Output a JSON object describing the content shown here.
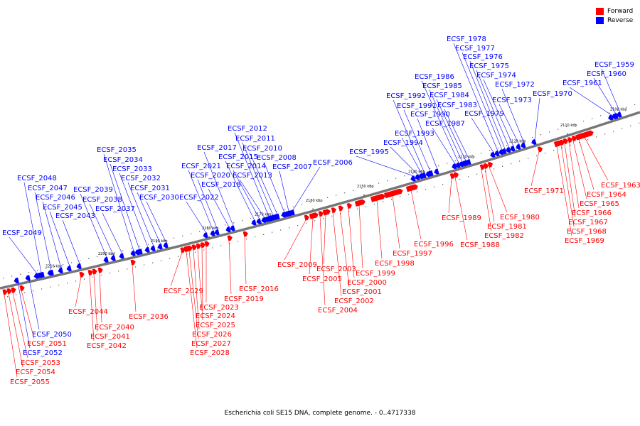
{
  "legend": {
    "forward": {
      "label": "Forward",
      "color": "#ff0000"
    },
    "reverse": {
      "label": "Reverse",
      "color": "#0000ff"
    }
  },
  "caption": "Escherichia coli SE15 DNA, complete genome. - 0..4717338",
  "ticks": [
    "2100 kbp",
    "2110 kbp",
    "2120 kbp",
    "2130 kbp",
    "2140 kbp",
    "2150 kbp",
    "2160 kbp",
    "2170 kbp",
    "2180 kbp",
    "2190 kbp",
    "2200 kbp",
    "2210 kbp"
  ],
  "genes": [
    {
      "id": "ECSF_1959",
      "strand": "reverse"
    },
    {
      "id": "ECSF_1960",
      "strand": "reverse"
    },
    {
      "id": "ECSF_1961",
      "strand": "reverse"
    },
    {
      "id": "ECSF_1963",
      "strand": "forward"
    },
    {
      "id": "ECSF_1964",
      "strand": "forward"
    },
    {
      "id": "ECSF_1965",
      "strand": "forward"
    },
    {
      "id": "ECSF_1966",
      "strand": "forward"
    },
    {
      "id": "ECSF_1967",
      "strand": "forward"
    },
    {
      "id": "ECSF_1968",
      "strand": "forward"
    },
    {
      "id": "ECSF_1969",
      "strand": "forward"
    },
    {
      "id": "ECSF_1970",
      "strand": "reverse"
    },
    {
      "id": "ECSF_1971",
      "strand": "forward"
    },
    {
      "id": "ECSF_1972",
      "strand": "reverse"
    },
    {
      "id": "ECSF_1973",
      "strand": "reverse"
    },
    {
      "id": "ECSF_1974",
      "strand": "reverse"
    },
    {
      "id": "ECSF_1975",
      "strand": "reverse"
    },
    {
      "id": "ECSF_1976",
      "strand": "reverse"
    },
    {
      "id": "ECSF_1977",
      "strand": "reverse"
    },
    {
      "id": "ECSF_1978",
      "strand": "reverse"
    },
    {
      "id": "ECSF_1979",
      "strand": "reverse"
    },
    {
      "id": "ECSF_1980",
      "strand": "forward"
    },
    {
      "id": "ECSF_1981",
      "strand": "forward"
    },
    {
      "id": "ECSF_1982",
      "strand": "forward"
    },
    {
      "id": "ECSF_1983",
      "strand": "reverse"
    },
    {
      "id": "ECSF_1984",
      "strand": "reverse"
    },
    {
      "id": "ECSF_1985",
      "strand": "reverse"
    },
    {
      "id": "ECSF_1986",
      "strand": "reverse"
    },
    {
      "id": "ECSF_1987",
      "strand": "reverse"
    },
    {
      "id": "ECSF_1988",
      "strand": "forward"
    },
    {
      "id": "ECSF_1989",
      "strand": "forward"
    },
    {
      "id": "ECSF_1990",
      "strand": "reverse"
    },
    {
      "id": "ECSF_1991",
      "strand": "reverse"
    },
    {
      "id": "ECSF_1992",
      "strand": "reverse"
    },
    {
      "id": "ECSF_1993",
      "strand": "reverse"
    },
    {
      "id": "ECSF_1994",
      "strand": "reverse"
    },
    {
      "id": "ECSF_1995",
      "strand": "reverse"
    },
    {
      "id": "ECSF_1996",
      "strand": "forward"
    },
    {
      "id": "ECSF_1997",
      "strand": "forward"
    },
    {
      "id": "ECSF_1998",
      "strand": "forward"
    },
    {
      "id": "ECSF_1999",
      "strand": "forward"
    },
    {
      "id": "ECSF_2000",
      "strand": "forward"
    },
    {
      "id": "ECSF_2001",
      "strand": "forward"
    },
    {
      "id": "ECSF_2002",
      "strand": "forward"
    },
    {
      "id": "ECSF_2003",
      "strand": "forward"
    },
    {
      "id": "ECSF_2004",
      "strand": "forward"
    },
    {
      "id": "ECSF_2005",
      "strand": "forward"
    },
    {
      "id": "ECSF_2006",
      "strand": "reverse"
    },
    {
      "id": "ECSF_2007",
      "strand": "reverse"
    },
    {
      "id": "ECSF_2008",
      "strand": "reverse"
    },
    {
      "id": "ECSF_2009",
      "strand": "forward"
    },
    {
      "id": "ECSF_2010",
      "strand": "reverse"
    },
    {
      "id": "ECSF_2011",
      "strand": "reverse"
    },
    {
      "id": "ECSF_2012",
      "strand": "reverse"
    },
    {
      "id": "ECSF_2013",
      "strand": "reverse"
    },
    {
      "id": "ECSF_2014",
      "strand": "reverse"
    },
    {
      "id": "ECSF_2015",
      "strand": "reverse"
    },
    {
      "id": "ECSF_2016",
      "strand": "forward"
    },
    {
      "id": "ECSF_2017",
      "strand": "reverse"
    },
    {
      "id": "ECSF_2018",
      "strand": "reverse"
    },
    {
      "id": "ECSF_2019",
      "strand": "forward"
    },
    {
      "id": "ECSF_2020",
      "strand": "reverse"
    },
    {
      "id": "ECSF_2021",
      "strand": "reverse"
    },
    {
      "id": "ECSF_2022",
      "strand": "reverse"
    },
    {
      "id": "ECSF_2023",
      "strand": "forward"
    },
    {
      "id": "ECSF_2024",
      "strand": "forward"
    },
    {
      "id": "ECSF_2025",
      "strand": "forward"
    },
    {
      "id": "ECSF_2026",
      "strand": "forward"
    },
    {
      "id": "ECSF_2027",
      "strand": "forward"
    },
    {
      "id": "ECSF_2028",
      "strand": "forward"
    },
    {
      "id": "ECSF_2029",
      "strand": "forward"
    },
    {
      "id": "ECSF_2030",
      "strand": "reverse"
    },
    {
      "id": "ECSF_2031",
      "strand": "reverse"
    },
    {
      "id": "ECSF_2032",
      "strand": "reverse"
    },
    {
      "id": "ECSF_2033",
      "strand": "reverse"
    },
    {
      "id": "ECSF_2034",
      "strand": "reverse"
    },
    {
      "id": "ECSF_2035",
      "strand": "reverse"
    },
    {
      "id": "ECSF_2036",
      "strand": "forward"
    },
    {
      "id": "ECSF_2037",
      "strand": "reverse"
    },
    {
      "id": "ECSF_2038",
      "strand": "reverse"
    },
    {
      "id": "ECSF_2039",
      "strand": "reverse"
    },
    {
      "id": "ECSF_2040",
      "strand": "forward"
    },
    {
      "id": "ECSF_2041",
      "strand": "forward"
    },
    {
      "id": "ECSF_2042",
      "strand": "forward"
    },
    {
      "id": "ECSF_2043",
      "strand": "reverse"
    },
    {
      "id": "ECSF_2044",
      "strand": "forward"
    },
    {
      "id": "ECSF_2045",
      "strand": "reverse"
    },
    {
      "id": "ECSF_2046",
      "strand": "reverse"
    },
    {
      "id": "ECSF_2047",
      "strand": "reverse"
    },
    {
      "id": "ECSF_2048",
      "strand": "reverse"
    },
    {
      "id": "ECSF_2049",
      "strand": "reverse"
    },
    {
      "id": "ECSF_2050",
      "strand": "reverse"
    },
    {
      "id": "ECSF_2051",
      "strand": "forward"
    },
    {
      "id": "ECSF_2052",
      "strand": "reverse"
    },
    {
      "id": "ECSF_2053",
      "strand": "forward"
    },
    {
      "id": "ECSF_2054",
      "strand": "forward"
    },
    {
      "id": "ECSF_2055",
      "strand": "forward"
    }
  ]
}
